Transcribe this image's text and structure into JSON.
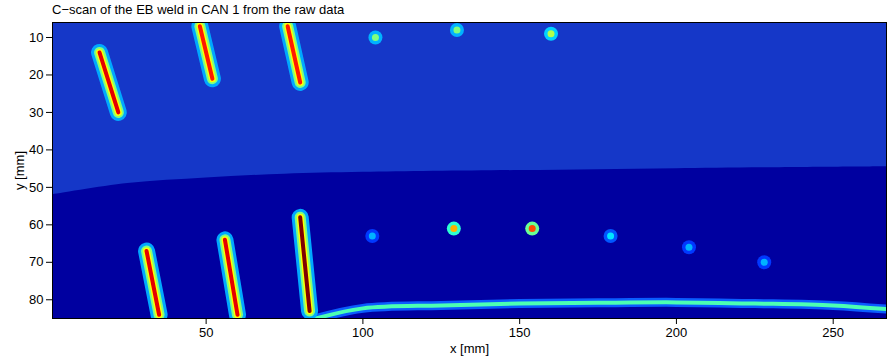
{
  "chart_data": {
    "type": "heatmap",
    "title": "C−scan of the EB weld in CAN 1 from the raw data",
    "x_label": "x [mm]",
    "y_label": "y [mm]",
    "xlim": [
      1,
      267
    ],
    "ylim": [
      6,
      85
    ],
    "xticks": [
      50,
      100,
      150,
      200,
      250
    ],
    "yticks": [
      10,
      20,
      30,
      40,
      50,
      60,
      70,
      80
    ],
    "zlim": [
      0,
      1
    ],
    "line_indications": [
      {
        "x": [
          16,
          22
        ],
        "y": [
          14,
          30
        ],
        "value": 0.9
      },
      {
        "x": [
          48,
          52
        ],
        "y": [
          7,
          21
        ],
        "value": 0.85
      },
      {
        "x": [
          76,
          80
        ],
        "y": [
          7,
          22
        ],
        "value": 0.85
      },
      {
        "x": [
          31,
          35
        ],
        "y": [
          67,
          84
        ],
        "value": 0.9
      },
      {
        "x": [
          56,
          60
        ],
        "y": [
          64,
          84
        ],
        "value": 0.9
      },
      {
        "x": [
          80,
          83
        ],
        "y": [
          58,
          83
        ],
        "value": 1.0
      }
    ],
    "point_indications": {
      "x": [
        104,
        130,
        160,
        103,
        129,
        154,
        179,
        204,
        228
      ],
      "y": [
        10,
        8,
        9,
        63,
        61,
        61,
        63,
        66,
        70
      ],
      "values": [
        0.5,
        0.5,
        0.55,
        0.3,
        0.7,
        0.8,
        0.35,
        0.3,
        0.3
      ]
    },
    "boundary": {
      "x": [
        1,
        25,
        50,
        75,
        100,
        150,
        200,
        267
      ],
      "y": [
        52,
        49,
        47.5,
        46.5,
        46,
        45.5,
        45,
        44.5
      ]
    },
    "back_wall": {
      "x": [
        85,
        100,
        125,
        150,
        175,
        200,
        225,
        250,
        267
      ],
      "y": [
        85,
        82.3,
        81.5,
        81,
        80.8,
        80.7,
        81,
        81.5,
        82.5
      ],
      "value": 0.45
    }
  }
}
